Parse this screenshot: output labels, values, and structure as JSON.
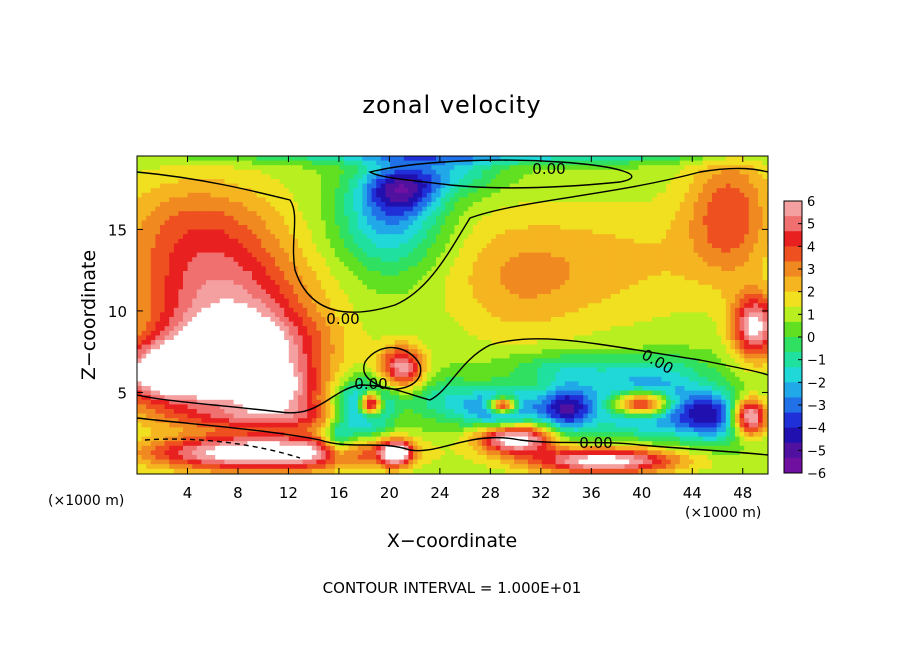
{
  "chart_data": {
    "type": "heatmap",
    "title": "zonal velocity",
    "xlabel": "X−coordinate",
    "ylabel": "Z−coordinate",
    "x_unit_label": "(×1000 m)",
    "x_unit_label_right": "(×1000 m)",
    "xlim": [
      0,
      50
    ],
    "ylim": [
      0,
      19.5
    ],
    "x_ticks": [
      4,
      8,
      12,
      16,
      20,
      24,
      28,
      32,
      36,
      40,
      44,
      48
    ],
    "y_ticks": [
      5,
      10,
      15
    ],
    "footer": "CONTOUR INTERVAL = 1.000E+01",
    "contour_label": "0.00",
    "colorbar": {
      "ticks": [
        "6",
        "5",
        "4",
        "3",
        "2",
        "1",
        "0",
        "−1",
        "−2",
        "−3",
        "−4",
        "−5",
        "−6"
      ],
      "range": [
        -6,
        6
      ],
      "colors": [
        "#f4a0a0",
        "#f07070",
        "#e82020",
        "#ee5020",
        "#f08a20",
        "#f5b520",
        "#f0e020",
        "#b8ef20",
        "#60e020",
        "#30e060",
        "#20e0a0",
        "#20d8d8",
        "#20a8e8",
        "#2070e8",
        "#2030d8",
        "#2010b0",
        "#5010a0",
        "#7010a0"
      ]
    },
    "field": {
      "background": 0.7,
      "blobs": [
        {
          "x": 5,
          "z": 15,
          "rx": 7,
          "rz": 3.5,
          "v": 2.8
        },
        {
          "x": 7,
          "z": 11,
          "rx": 7,
          "rz": 3,
          "v": 3.5
        },
        {
          "x": 8,
          "z": 7.5,
          "rx": 6.5,
          "rz": 2.5,
          "v": 6.5
        },
        {
          "x": 3,
          "z": 6,
          "rx": 5,
          "rz": 1.8,
          "v": 6
        },
        {
          "x": 11,
          "z": 5,
          "rx": 4,
          "rz": 1.5,
          "v": 4
        },
        {
          "x": 10,
          "z": 3.5,
          "rx": 9,
          "rz": 0.9,
          "v": 3
        },
        {
          "x": 10,
          "z": 1.3,
          "rx": 9,
          "rz": 1.1,
          "v": 6.8
        },
        {
          "x": 20,
          "z": 15.5,
          "rx": 4,
          "rz": 3,
          "v": -3
        },
        {
          "x": 21,
          "z": 17.5,
          "rx": 3,
          "rz": 1.5,
          "v": -4
        },
        {
          "x": 25,
          "z": 18.5,
          "rx": 4,
          "rz": 1.3,
          "v": -2
        },
        {
          "x": 27,
          "z": 19.5,
          "rx": 20,
          "rz": 0.5,
          "v": -2.5
        },
        {
          "x": 30,
          "z": 12,
          "rx": 6,
          "rz": 4,
          "v": 1.8
        },
        {
          "x": 39,
          "z": 13,
          "rx": 8,
          "rz": 4,
          "v": 1.3
        },
        {
          "x": 47,
          "z": 16,
          "rx": 3.5,
          "rz": 4,
          "v": 3
        },
        {
          "x": 49,
          "z": 9,
          "rx": 1.8,
          "rz": 2,
          "v": 5.5
        },
        {
          "x": 21,
          "z": 6.5,
          "rx": 1.8,
          "rz": 1.3,
          "v": 5
        },
        {
          "x": 24,
          "z": 4.5,
          "rx": 3,
          "rz": 1.5,
          "v": -1.8
        },
        {
          "x": 18,
          "z": 4,
          "rx": 2.3,
          "rz": 1.7,
          "v": -5.2
        },
        {
          "x": 18.5,
          "z": 4.3,
          "rx": 0.9,
          "rz": 0.7,
          "v": 8
        },
        {
          "x": 16,
          "z": 2,
          "rx": 1.2,
          "rz": 1.2,
          "v": -3
        },
        {
          "x": 20.5,
          "z": 1.3,
          "rx": 1.3,
          "rz": 0.8,
          "v": 6
        },
        {
          "x": 29,
          "z": 4,
          "rx": 3,
          "rz": 1.2,
          "v": -5
        },
        {
          "x": 29,
          "z": 4.2,
          "rx": 1.2,
          "rz": 0.5,
          "v": 8
        },
        {
          "x": 30,
          "z": 2.2,
          "rx": 3,
          "rz": 0.9,
          "v": 6.5
        },
        {
          "x": 34,
          "z": 4,
          "rx": 2,
          "rz": 1.5,
          "v": -4.5
        },
        {
          "x": 40,
          "z": 4.3,
          "rx": 4.5,
          "rz": 1.6,
          "v": -5.5
        },
        {
          "x": 40,
          "z": 4.3,
          "rx": 2.5,
          "rz": 0.8,
          "v": 9
        },
        {
          "x": 46,
          "z": 3.5,
          "rx": 3.5,
          "rz": 1.5,
          "v": -4.5
        },
        {
          "x": 48.5,
          "z": 3.5,
          "rx": 1.5,
          "rz": 1.2,
          "v": 8
        },
        {
          "x": 37,
          "z": 0.8,
          "rx": 6,
          "rz": 0.8,
          "v": 6
        },
        {
          "x": 34,
          "z": 6.5,
          "rx": 5,
          "rz": 1,
          "v": -1.8
        },
        {
          "x": 42,
          "z": 6.5,
          "rx": 4,
          "rz": 1,
          "v": -1.2
        }
      ]
    }
  }
}
